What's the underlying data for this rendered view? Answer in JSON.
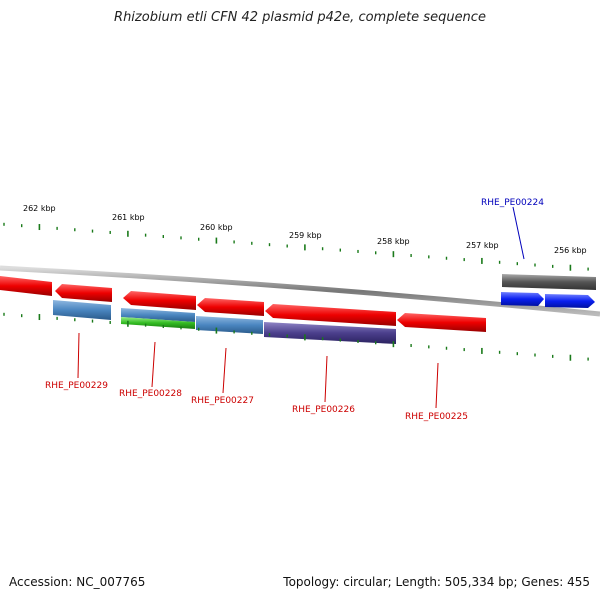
{
  "title": "Rhizobium etli CFN 42 plasmid p42e, complete sequence",
  "footer": {
    "accession": "Accession: NC_007765",
    "stats": "Topology: circular; Length: 505,334 bp; Genes: 455"
  },
  "scale_labels": [
    "262 kbp",
    "261 kbp",
    "260 kbp",
    "259 kbp",
    "258 kbp",
    "257 kbp",
    "256 kbp"
  ],
  "gene_labels": [
    {
      "id": "RHE_PE00229",
      "color": "#cc0000"
    },
    {
      "id": "RHE_PE00228",
      "color": "#cc0000"
    },
    {
      "id": "RHE_PE00227",
      "color": "#cc0000"
    },
    {
      "id": "RHE_PE00226",
      "color": "#cc0000"
    },
    {
      "id": "RHE_PE00225",
      "color": "#cc0000"
    },
    {
      "id": "RHE_PE00224",
      "color": "#0000bb"
    }
  ],
  "colors": {
    "backbone": "#888888",
    "red_gene": "#ee1111",
    "blue_gene": "#4a86c0",
    "green_gene": "#33bb22",
    "purple_gene": "#4b3f8c",
    "gray_gene": "#555555",
    "bright_blue_gene": "#0a1ff0",
    "tick": "#1a7a1a"
  }
}
